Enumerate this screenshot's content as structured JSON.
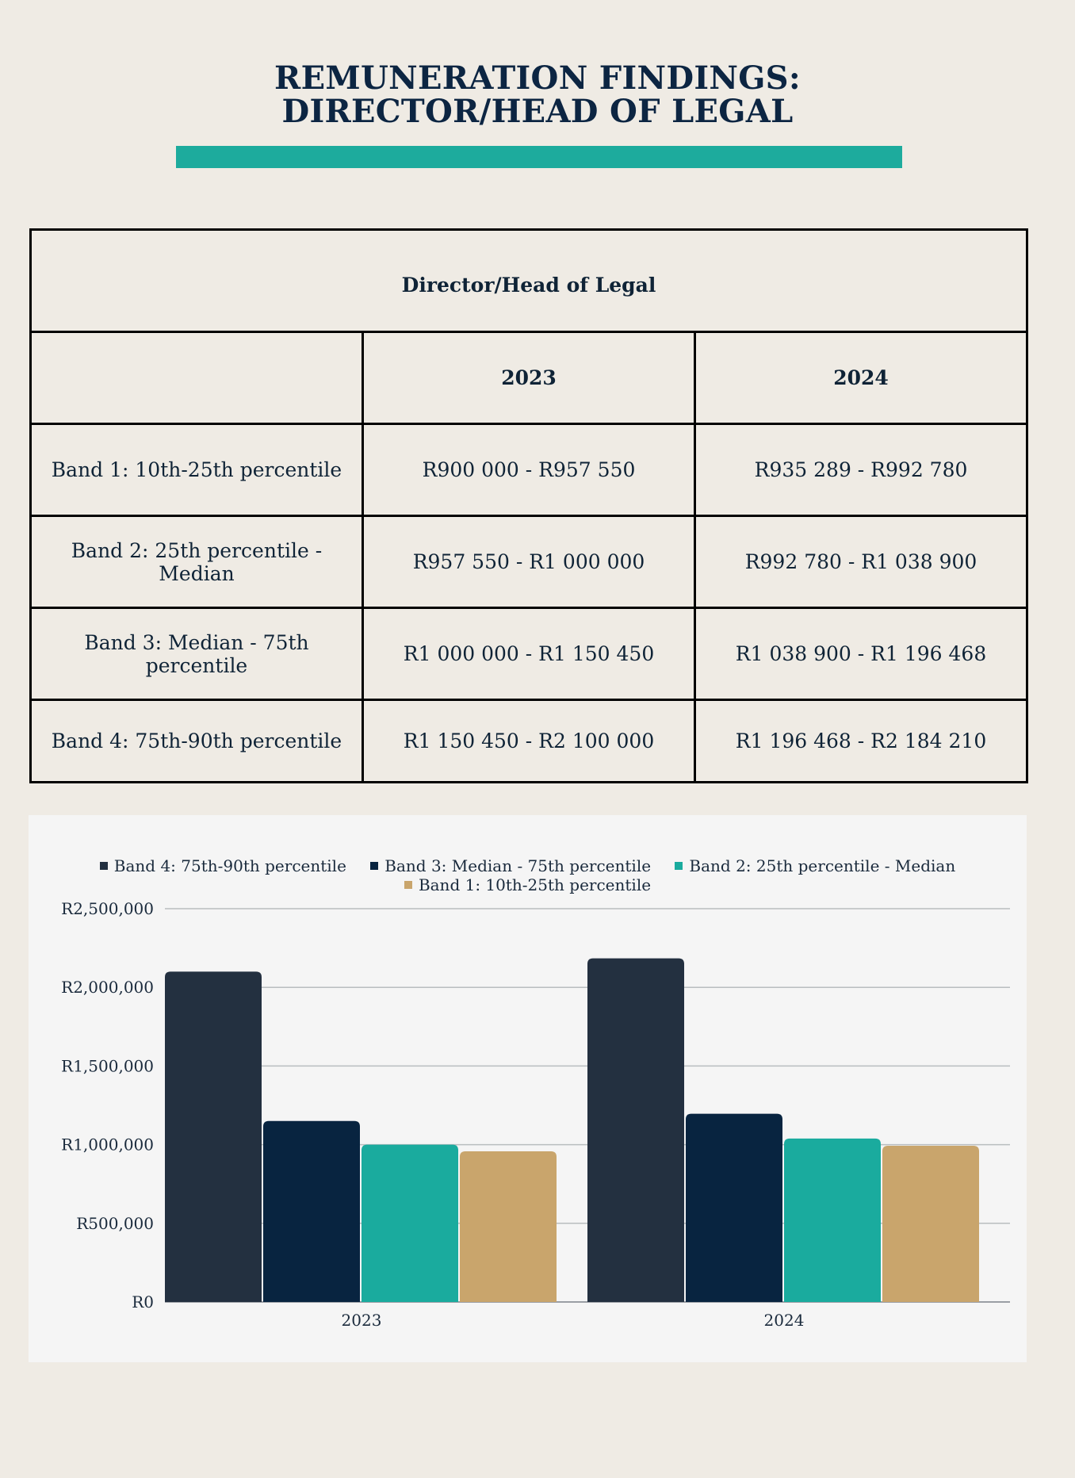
{
  "title": {
    "line1": "REMUNERATION FINDINGS:",
    "line2": "DIRECTOR/HEAD OF LEGAL"
  },
  "colors": {
    "accent": "#1dab9d",
    "band4": "#233040",
    "band3": "#082440",
    "band2": "#1aab9e",
    "band1": "#c9a56c"
  },
  "table": {
    "heading": "Director/Head of Legal",
    "columns": [
      "",
      "2023",
      "2024"
    ],
    "rows": [
      {
        "label": "Band 1: 10th-25th percentile",
        "y2023": "R900 000 - R957 550",
        "y2024": "R935 289 - R992 780"
      },
      {
        "label": "Band 2: 25th percentile - Median",
        "y2023": "R957 550 - R1 000 000",
        "y2024": "R992 780 - R1 038 900"
      },
      {
        "label": "Band 3: Median - 75th percentile",
        "y2023": "R1 000 000 - R1 150 450",
        "y2024": "R1 038 900 - R1 196 468"
      },
      {
        "label": "Band 4: 75th-90th percentile",
        "y2023": "R1 150 450 - R2 100 000",
        "y2024": "R1 196 468 - R2 184 210"
      }
    ]
  },
  "chart_data": {
    "type": "bar",
    "categories": [
      "2023",
      "2024"
    ],
    "series": [
      {
        "name": "Band 4: 75th-90th percentile",
        "values": [
          2100000,
          2184210
        ],
        "color": "#233040"
      },
      {
        "name": "Band 3: Median - 75th percentile",
        "values": [
          1150450,
          1196468
        ],
        "color": "#082440"
      },
      {
        "name": "Band 2: 25th percentile - Median",
        "values": [
          1000000,
          1038900
        ],
        "color": "#1aab9e"
      },
      {
        "name": "Band 1: 10th-25th percentile",
        "values": [
          957550,
          992780
        ],
        "color": "#c9a56c"
      }
    ],
    "yticks": [
      "R0",
      "R500,000",
      "R1,000,000",
      "R1,500,000",
      "R2,000,000",
      "R2,500,000"
    ],
    "ylim": [
      0,
      2500000
    ],
    "grid": true,
    "legend": "top"
  }
}
